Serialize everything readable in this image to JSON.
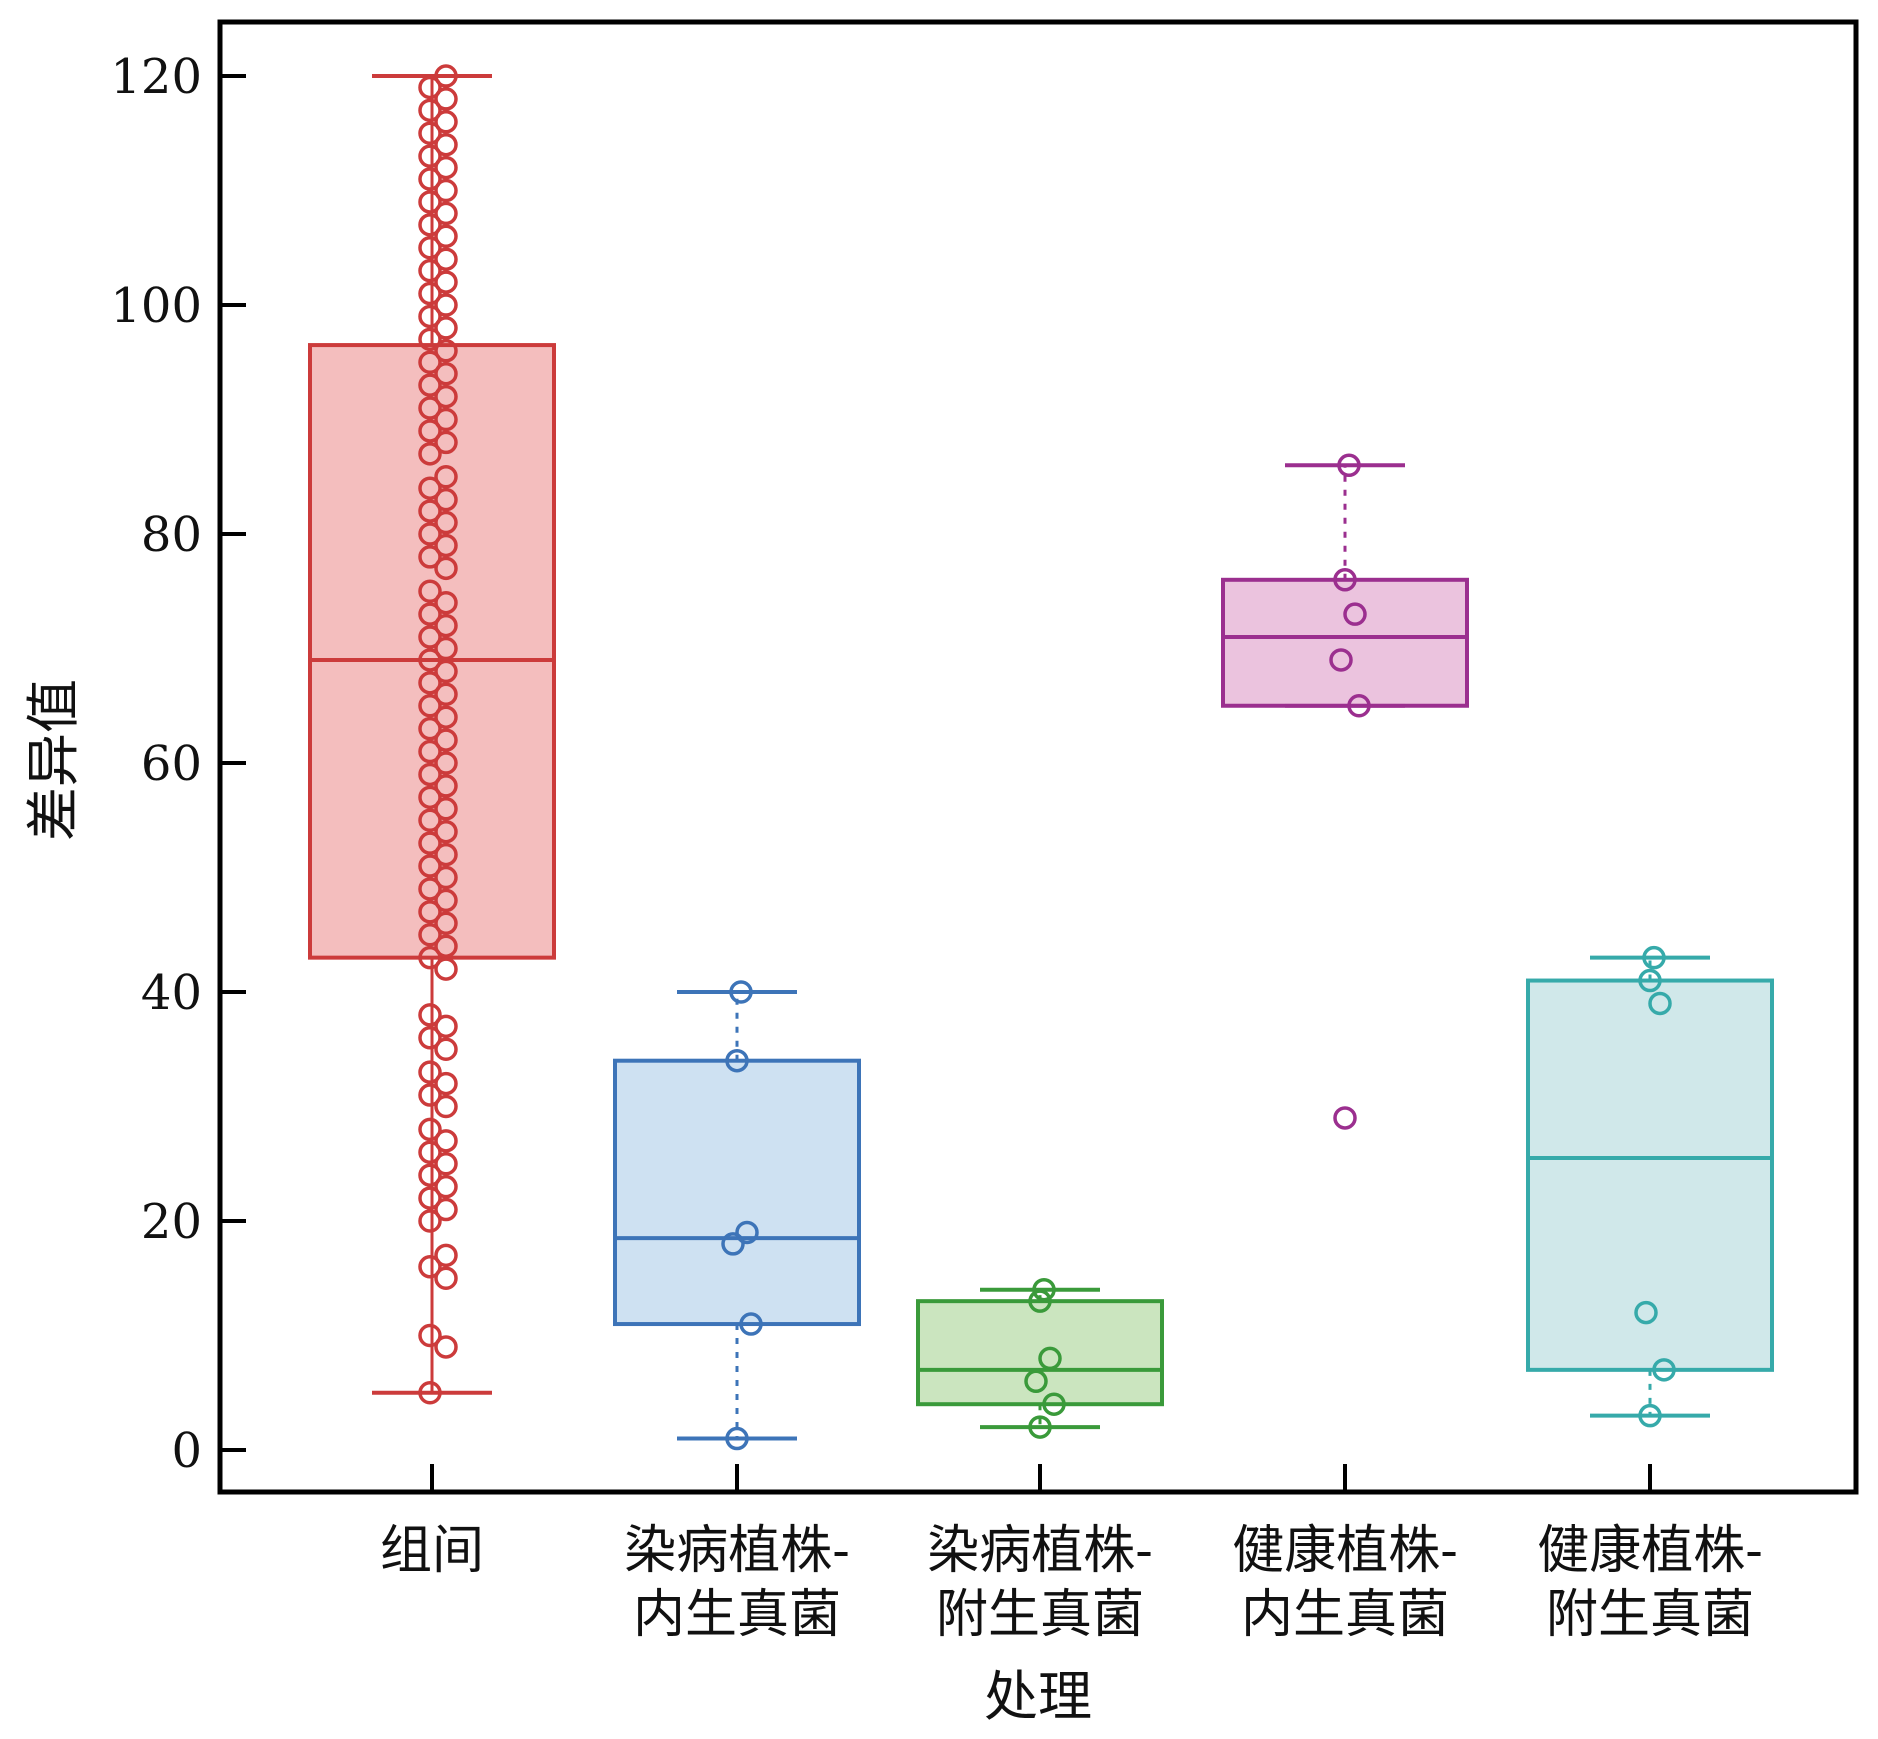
{
  "chart_data": {
    "type": "box",
    "xlabel": "处理",
    "ylabel": "差异值",
    "ylim": [
      -4,
      124
    ],
    "yticks": [
      0,
      20,
      40,
      60,
      80,
      100,
      120
    ],
    "grid": false,
    "categories": [
      {
        "line1": "组间",
        "line2": ""
      },
      {
        "line1": "染病植株-",
        "line2": "内生真菌"
      },
      {
        "line1": "染病植株-",
        "line2": "附生真菌"
      },
      {
        "line1": "健康植株-",
        "line2": "内生真菌"
      },
      {
        "line1": "健康植株-",
        "line2": "附生真菌"
      }
    ],
    "groups": [
      {
        "color": "#cc3b3b",
        "fill": "#f2b3b3",
        "whisker_low": 5,
        "q1": 43,
        "median": 69,
        "q3": 96.5,
        "whisker_high": 120,
        "points": [
          5,
          9,
          10,
          15,
          16,
          17,
          20,
          21,
          22,
          23,
          24,
          25,
          26,
          27,
          28,
          30,
          31,
          32,
          33,
          35,
          36,
          37,
          38,
          42,
          43,
          44,
          45,
          46,
          47,
          48,
          49,
          50,
          51,
          52,
          53,
          54,
          55,
          56,
          57,
          58,
          59,
          60,
          61,
          62,
          63,
          64,
          65,
          66,
          67,
          68,
          69,
          70,
          71,
          72,
          73,
          74,
          75,
          77,
          78,
          79,
          80,
          81,
          82,
          83,
          84,
          85,
          87,
          88,
          89,
          90,
          91,
          92,
          93,
          94,
          95,
          96,
          97,
          98,
          99,
          100,
          101,
          102,
          103,
          104,
          105,
          106,
          107,
          108,
          109,
          110,
          111,
          112,
          113,
          114,
          115,
          116,
          117,
          118,
          119,
          120
        ]
      },
      {
        "color": "#3d74b8",
        "fill": "#c5dcf0",
        "whisker_low": 1,
        "q1": 11,
        "median": 18.5,
        "q3": 34,
        "whisker_high": 40,
        "points": [
          1,
          11,
          18,
          19,
          34,
          40
        ]
      },
      {
        "color": "#3a9a3a",
        "fill": "#c2e0b4",
        "whisker_low": 2,
        "q1": 4,
        "median": 7,
        "q3": 13,
        "whisker_high": 14,
        "points": [
          2,
          4,
          6,
          8,
          13,
          14
        ]
      },
      {
        "color": "#9b2f8f",
        "fill": "#e8b8d8",
        "whisker_low": 65,
        "q1": 65,
        "median": 71,
        "q3": 76,
        "whisker_high": 86,
        "points": [
          29,
          65,
          69,
          73,
          76,
          86
        ]
      },
      {
        "color": "#36aaaa",
        "fill": "#c8e4e6",
        "whisker_low": 3,
        "q1": 7,
        "median": 25.5,
        "q3": 41,
        "whisker_high": 43,
        "points": [
          3,
          7,
          12,
          39,
          41,
          43
        ]
      }
    ]
  }
}
